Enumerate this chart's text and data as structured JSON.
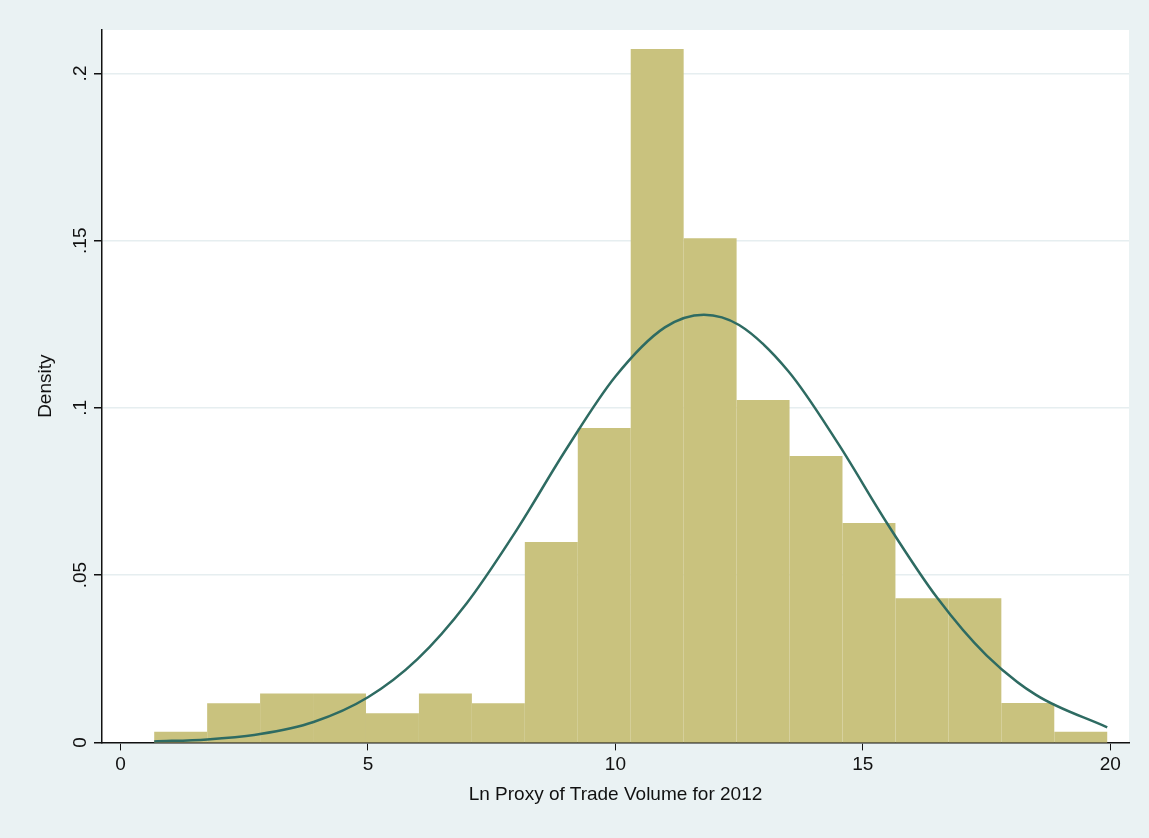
{
  "chart_data": {
    "type": "histogram",
    "xlabel": "Ln Proxy of Trade Volume for 2012",
    "ylabel": "Density",
    "bins": [
      0.68,
      1.75,
      2.82,
      3.89,
      4.96,
      6.03,
      7.1,
      8.17,
      9.24,
      10.31,
      11.38,
      12.45,
      13.52,
      14.59,
      15.66,
      16.73,
      17.8,
      18.87,
      19.94
    ],
    "values": [
      0.0032,
      0.0117,
      0.0146,
      0.0146,
      0.0087,
      0.0146,
      0.0117,
      0.0599,
      0.094,
      0.2073,
      0.1507,
      0.1024,
      0.0856,
      0.0656,
      0.0431,
      0.0431,
      0.0118,
      0.0032
    ],
    "color": "#c9c27e",
    "series": [
      {
        "type": "line",
        "color": "#2e6b62",
        "x": [
          0.68,
          1.75,
          2.82,
          3.9,
          5,
          6,
          7,
          8,
          9,
          10,
          11,
          11.79,
          12.5,
          13.5,
          14.5,
          15.5,
          16.5,
          17.5,
          18.5,
          19.94
        ],
        "values": [
          0.0003,
          0.0009,
          0.0025,
          0.0061,
          0.0135,
          0.0249,
          0.0417,
          0.0634,
          0.0875,
          0.1094,
          0.1241,
          0.1279,
          0.1248,
          0.1109,
          0.0894,
          0.0653,
          0.0433,
          0.026,
          0.0142,
          0.0045
        ]
      }
    ],
    "xlim": [
      -0.375,
      20.38
    ],
    "xticks": [
      0,
      5,
      10,
      15,
      20
    ],
    "ylim": [
      0,
      0.213
    ],
    "yticks": [
      {
        "value": 0,
        "label": "0"
      },
      {
        "value": 0.05,
        "label": ".05"
      },
      {
        "value": 0.1,
        "label": ".1"
      },
      {
        "value": 0.15,
        "label": ".15"
      },
      {
        "value": 0.2,
        "label": ".2"
      }
    ],
    "grid": "y"
  }
}
